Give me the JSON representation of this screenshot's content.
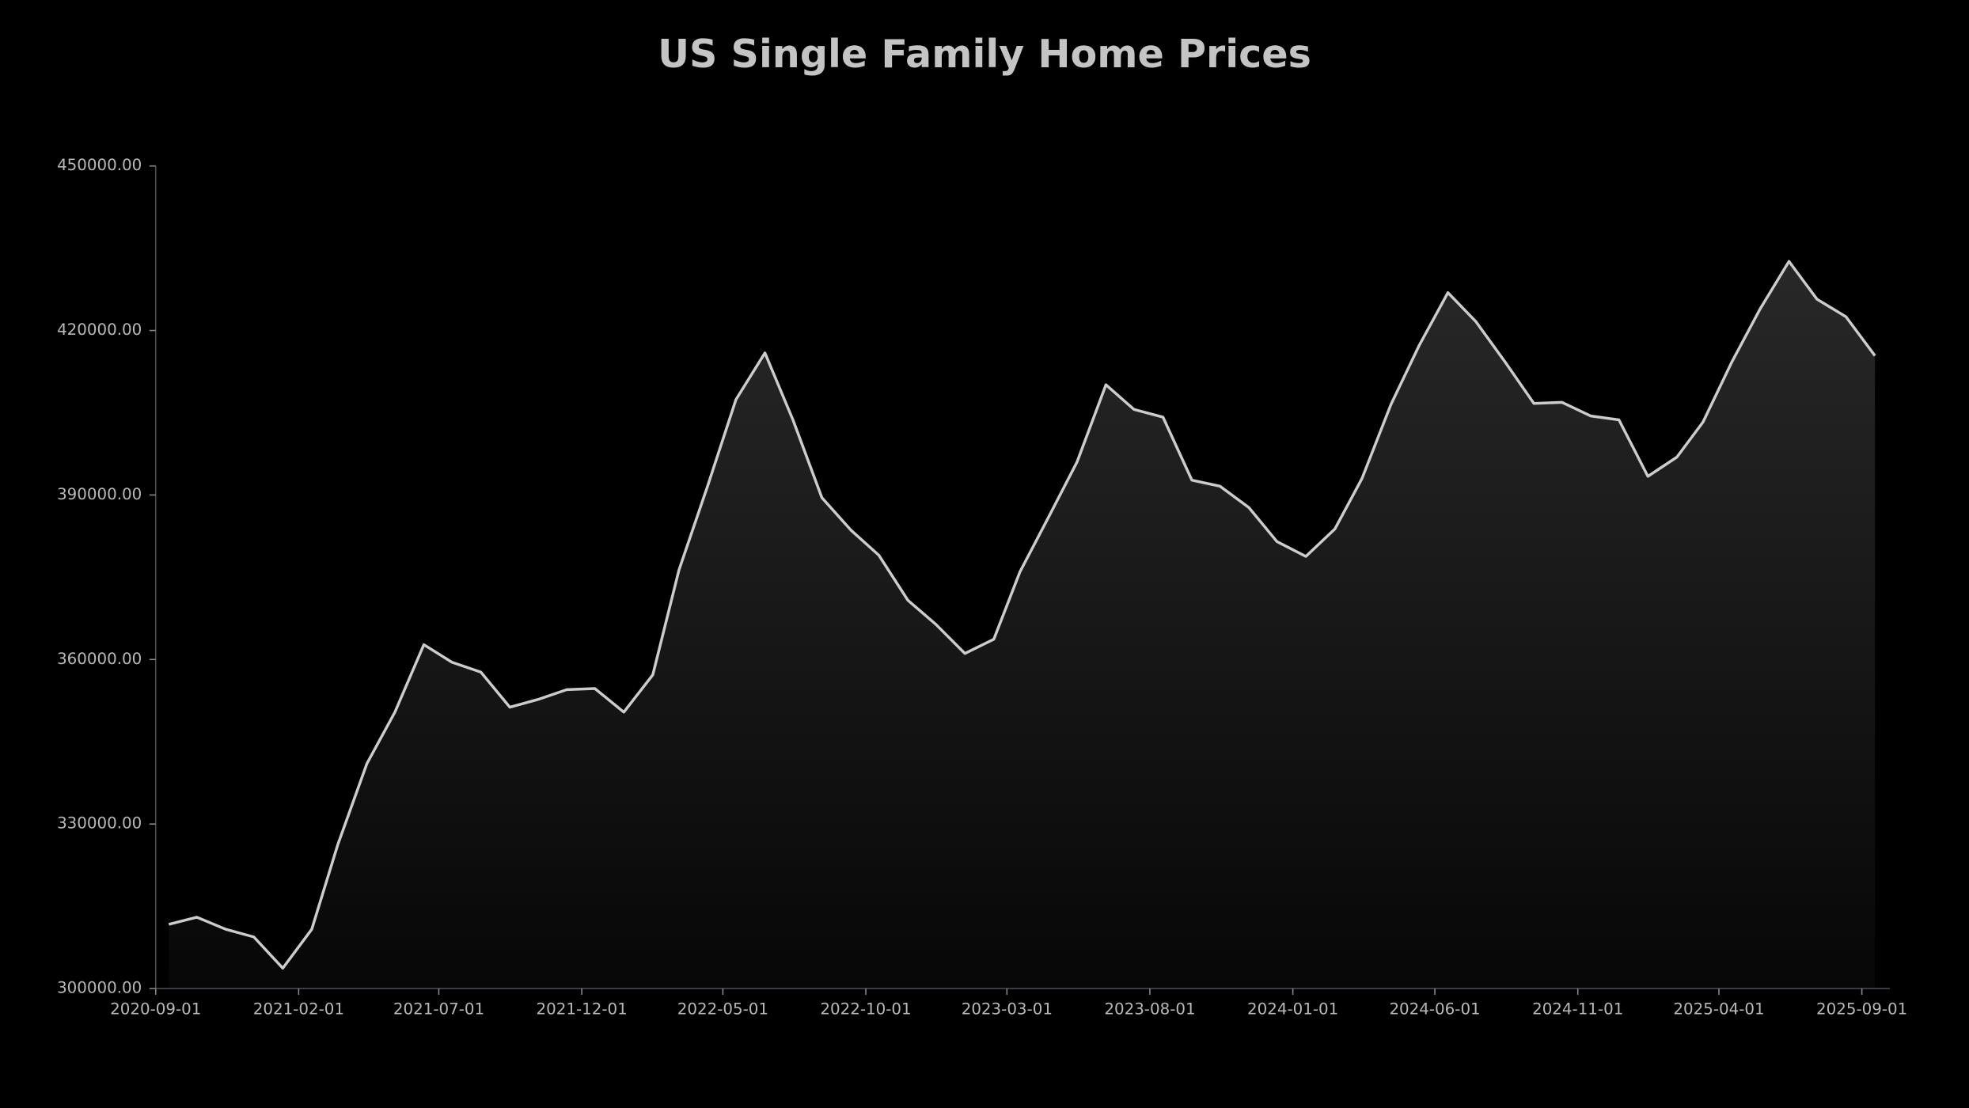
{
  "chart_data": {
    "type": "area",
    "title": "US Single Family Home Prices",
    "x": [
      "2020-09-15",
      "2020-10-15",
      "2020-11-15",
      "2020-12-15",
      "2021-01-15",
      "2021-02-15",
      "2021-03-15",
      "2021-04-15",
      "2021-05-15",
      "2021-06-15",
      "2021-07-15",
      "2021-08-15",
      "2021-09-15",
      "2021-10-15",
      "2021-11-15",
      "2021-12-15",
      "2022-01-15",
      "2022-02-15",
      "2022-03-15",
      "2022-04-15",
      "2022-05-15",
      "2022-06-15",
      "2022-07-15",
      "2022-08-15",
      "2022-09-15",
      "2022-10-15",
      "2022-11-15",
      "2022-12-15",
      "2023-01-15",
      "2023-02-15",
      "2023-03-15",
      "2023-04-15",
      "2023-05-15",
      "2023-06-15",
      "2023-07-15",
      "2023-08-15",
      "2023-09-15",
      "2023-10-15",
      "2023-11-15",
      "2023-12-15",
      "2024-01-15",
      "2024-02-15",
      "2024-03-15",
      "2024-04-15",
      "2024-05-15",
      "2024-06-15",
      "2024-07-15",
      "2024-08-15",
      "2024-09-15",
      "2024-10-15",
      "2024-11-15",
      "2024-12-15",
      "2025-01-15",
      "2025-02-15",
      "2025-03-15",
      "2025-04-15",
      "2025-05-15",
      "2025-06-15",
      "2025-07-15",
      "2025-08-15",
      "2025-09-15"
    ],
    "series": [
      {
        "name": "US Single Family Home Prices",
        "color": "#cccccc",
        "values": [
          311700,
          313000,
          310800,
          309400,
          303700,
          310800,
          326300,
          341000,
          350400,
          362700,
          359500,
          357700,
          351300,
          352700,
          354500,
          354700,
          350400,
          357200,
          376300,
          391800,
          407400,
          415900,
          403700,
          389500,
          383600,
          379000,
          370800,
          366400,
          361100,
          363700,
          376000,
          386100,
          396000,
          410100,
          405600,
          404200,
          392700,
          391600,
          387700,
          381500,
          378800,
          383800,
          393000,
          406500,
          417200,
          426900,
          421600,
          414300,
          406700,
          406900,
          404400,
          403700,
          393400,
          396900,
          403300,
          414300,
          423900,
          432600,
          425700,
          422500,
          415400
        ]
      }
    ],
    "xlim": [
      "2020-09-01",
      "2025-10-01"
    ],
    "xticks": [
      "2020-09-01",
      "2021-02-01",
      "2021-07-01",
      "2021-12-01",
      "2022-05-01",
      "2022-10-01",
      "2023-03-01",
      "2023-08-01",
      "2024-01-01",
      "2024-06-01",
      "2024-11-01",
      "2025-04-01",
      "2025-09-01"
    ],
    "ylim": [
      300000,
      450000
    ],
    "yticks": [
      {
        "value": 300000,
        "label": "300000.00"
      },
      {
        "value": 330000,
        "label": "330000.00"
      },
      {
        "value": 360000,
        "label": "360000.00"
      },
      {
        "value": 390000,
        "label": "390000.00"
      },
      {
        "value": 420000,
        "label": "420000.00"
      },
      {
        "value": 450000,
        "label": "450000.00"
      }
    ],
    "grid": false
  }
}
